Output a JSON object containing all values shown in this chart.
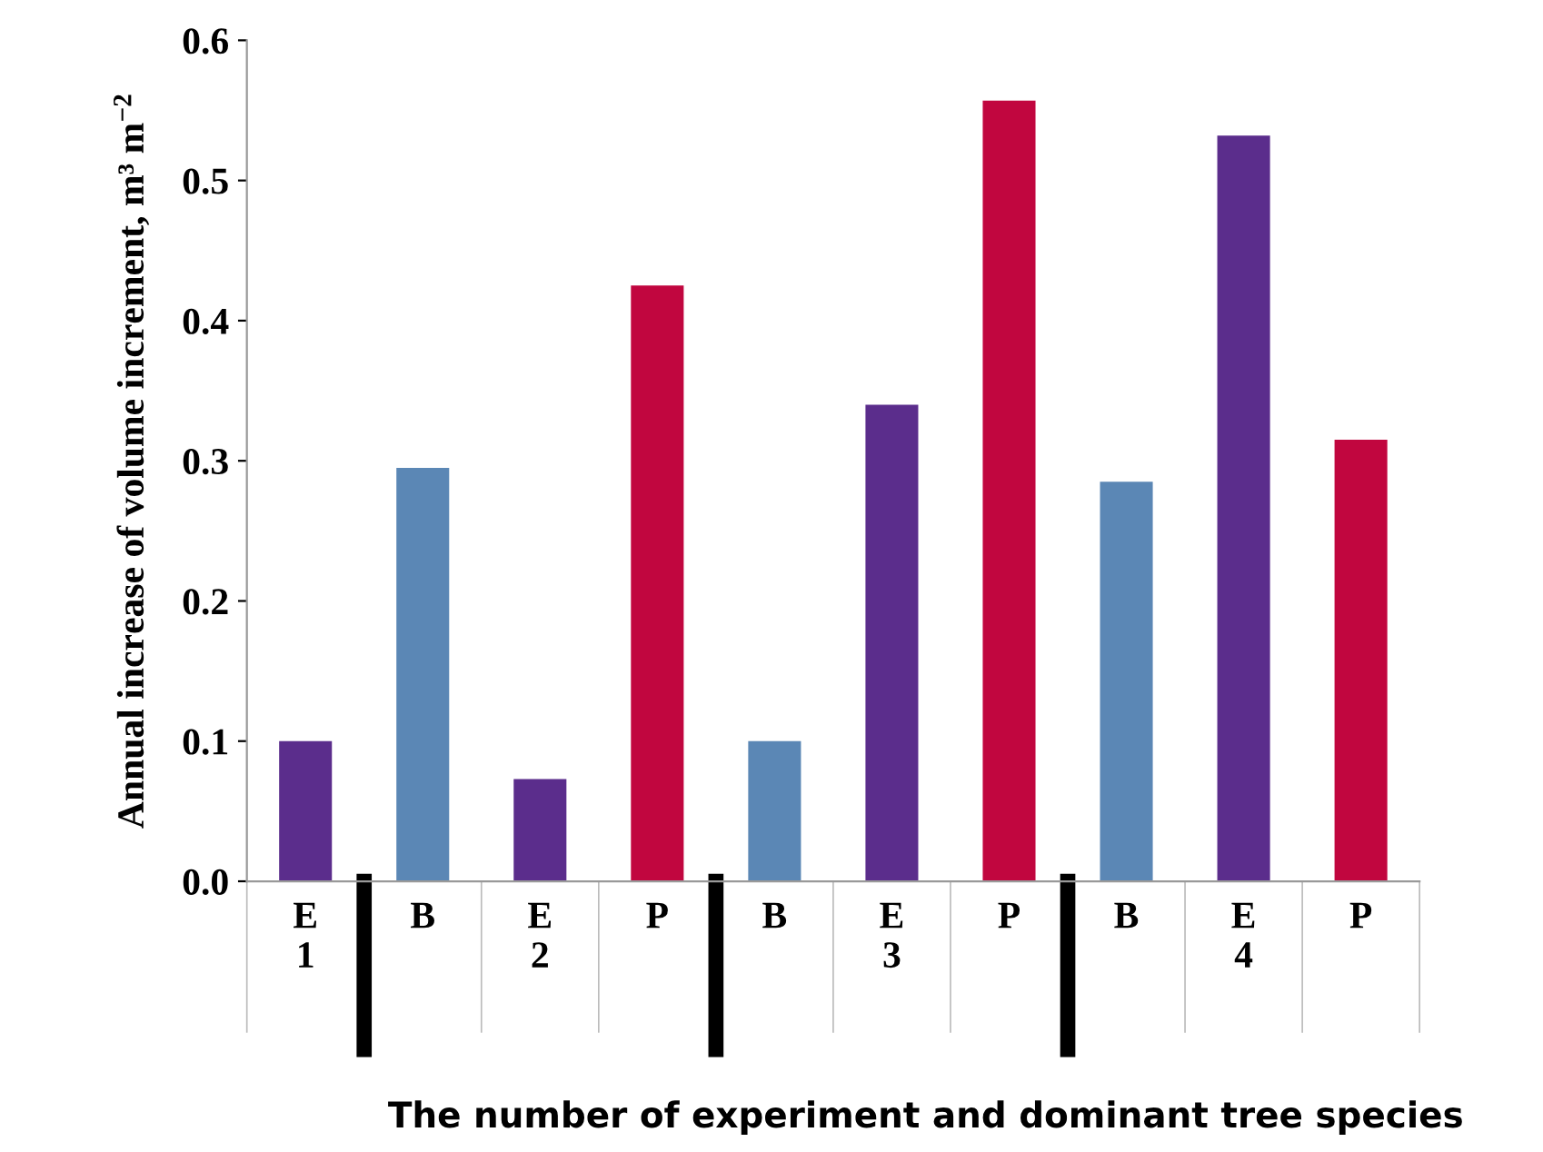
{
  "chart_data": {
    "type": "bar",
    "ylabel": "Annual increase of volume increment, m³ m$^{−2}$",
    "xlabel": "The number of experiment and dominant tree species",
    "categories": [
      "E\n1",
      "B",
      "E\n2",
      "P",
      "B",
      "E\n3",
      "P",
      "B",
      "E\n4",
      "P"
    ],
    "values": [
      0.1,
      0.295,
      0.073,
      0.425,
      0.1,
      0.34,
      0.557,
      0.285,
      0.532,
      0.315
    ],
    "colors": [
      "#5b2d8c",
      "#5b87b5",
      "#5b2d8c",
      "#c1063f",
      "#5b87b5",
      "#5b2d8c",
      "#c1063f",
      "#5b87b5",
      "#5b2d8c",
      "#c1063f"
    ],
    "ylim": [
      0,
      0.6
    ],
    "yticks": [
      {
        "value": 0,
        "label": "0.0"
      },
      0.1,
      0.2,
      0.3,
      0.4,
      0.5,
      0.6
    ],
    "grid": false
  }
}
